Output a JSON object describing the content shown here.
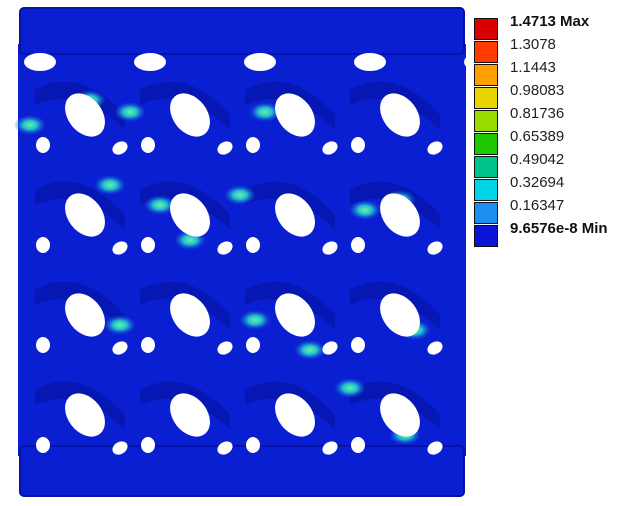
{
  "legend": {
    "max_label": "1.4713 Max",
    "min_label": "9.6576e-8 Min",
    "levels": [
      "1.3078",
      "1.1443",
      "0.98083",
      "0.81736",
      "0.65389",
      "0.49042",
      "0.32694",
      "0.16347"
    ],
    "colors": [
      "#d80000",
      "#ff3b00",
      "#ff9f00",
      "#e8d400",
      "#9bdc00",
      "#1ec800",
      "#00c58a",
      "#00d4e6",
      "#1a8ff0",
      "#0b13d6"
    ]
  },
  "model": {
    "base_color": "#0a1fd1",
    "dark_color": "#03109a",
    "rows": 4,
    "columns": 4
  }
}
